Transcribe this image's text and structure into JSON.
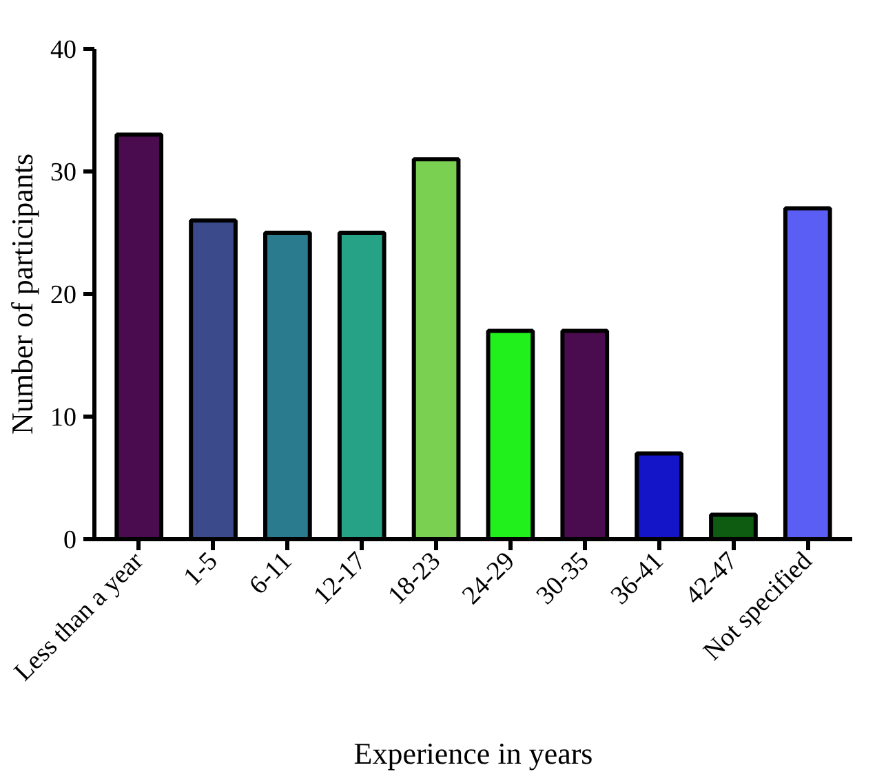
{
  "chart_data": {
    "type": "bar",
    "xlabel": "Experience in years",
    "ylabel": "Number of participants",
    "categories": [
      "Less than a year",
      "1-5",
      "6-11",
      "12-17",
      "18-23",
      "24-29",
      "30-35",
      "36-41",
      "42-47",
      "Not specified"
    ],
    "values": [
      33,
      26,
      25,
      25,
      31,
      17,
      17,
      7,
      2,
      27
    ],
    "colors": [
      "#4a0c4e",
      "#3b4a8a",
      "#2a7b8e",
      "#26a386",
      "#7ad151",
      "#22f01c",
      "#4a0c4e",
      "#1414c8",
      "#0d5c12",
      "#5b5ef5"
    ],
    "ylim": [
      0,
      40
    ],
    "yticks": [
      0,
      10,
      20,
      30,
      40
    ],
    "grid": false
  }
}
